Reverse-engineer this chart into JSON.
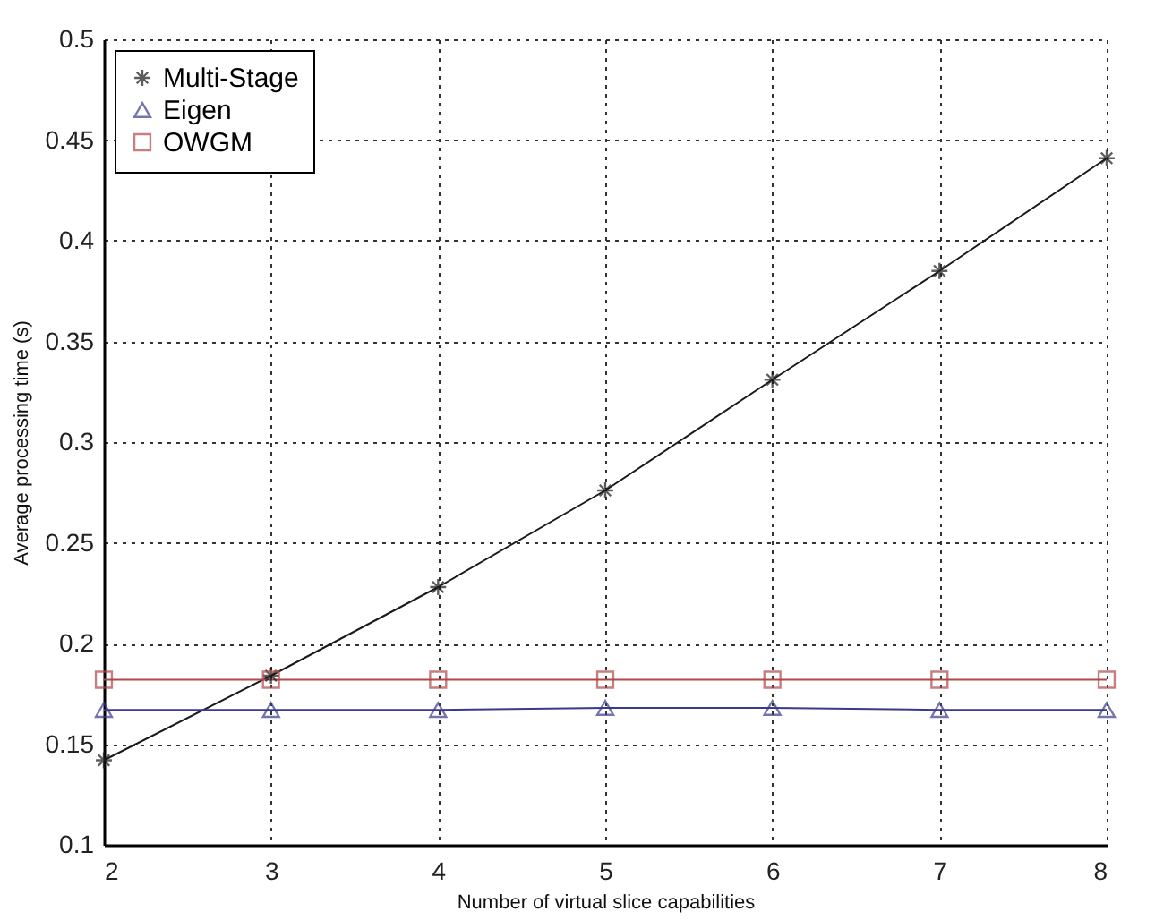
{
  "chart_data": {
    "type": "line",
    "xlabel": "Number of virtual slice capabilities",
    "ylabel": "Average processing time  (s)",
    "x": [
      2,
      3,
      4,
      5,
      6,
      7,
      8
    ],
    "series": [
      {
        "name": "Multi-Stage",
        "color": "#1a1a1a",
        "marker": "cross",
        "values": [
          0.142,
          0.184,
          0.228,
          0.276,
          0.331,
          0.385,
          0.441
        ]
      },
      {
        "name": "Eigen",
        "color": "#3a3a8c",
        "marker": "triangle",
        "values": [
          0.167,
          0.167,
          0.167,
          0.168,
          0.168,
          0.167,
          0.167
        ]
      },
      {
        "name": "OWGM",
        "color": "#b04848",
        "marker": "square",
        "values": [
          0.182,
          0.182,
          0.182,
          0.182,
          0.182,
          0.182,
          0.182
        ]
      }
    ],
    "xlim": [
      2,
      8
    ],
    "xticks": [
      2,
      3,
      4,
      5,
      6,
      7,
      8
    ],
    "ylim": [
      0.1,
      0.5
    ],
    "yticks": [
      0.1,
      0.15,
      0.2,
      0.25,
      0.3,
      0.35,
      0.4,
      0.45,
      0.5
    ],
    "grid": true,
    "legend": "top left",
    "line_style": "solid"
  }
}
